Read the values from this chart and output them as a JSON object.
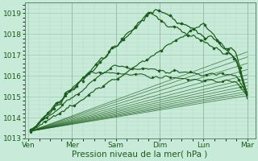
{
  "background_color": "#c8ead8",
  "plot_bg_color": "#c8ead8",
  "line_color": "#1a5c1a",
  "grid_major_color": "#a0c8b0",
  "grid_minor_color": "#b5d8c5",
  "ylim": [
    1013.0,
    1019.5
  ],
  "yticks": [
    1013,
    1014,
    1015,
    1016,
    1017,
    1018,
    1019
  ],
  "xlabel": "Pression niveau de la mer( hPa )",
  "xlabel_fontsize": 7.5,
  "tick_fontsize": 6.5,
  "day_labels": [
    "Ven",
    "Mer",
    "Sam",
    "Dim",
    "Lun",
    "Mar"
  ],
  "day_positions": [
    0,
    1,
    2,
    3,
    4,
    5
  ],
  "origin_x": 0.05,
  "origin_y": 1013.35,
  "fan_end_x": 5.0,
  "fan_endpoints_y": [
    1015.05,
    1015.15,
    1015.25,
    1015.38,
    1015.52,
    1015.68,
    1015.85,
    1016.05,
    1016.3,
    1016.6,
    1016.9,
    1017.15
  ],
  "xlim": [
    -0.08,
    5.18
  ]
}
